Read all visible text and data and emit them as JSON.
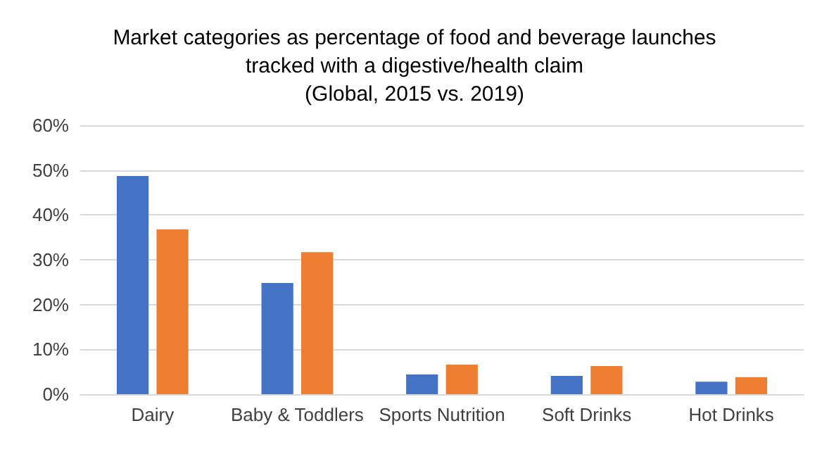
{
  "chart_data": {
    "type": "bar",
    "title": "Market categories as percentage of food and beverage launches\ntracked with a digestive/health claim\n(Global, 2015 vs. 2019)",
    "categories": [
      "Dairy",
      "Baby & Toddlers",
      "Sports Nutrition",
      "Soft Drinks",
      "Hot Drinks"
    ],
    "series": [
      {
        "color": "#4472c4",
        "values": [
          48.7,
          24.8,
          4.4,
          4.1,
          2.8
        ]
      },
      {
        "color": "#ed7d31",
        "values": [
          36.8,
          31.7,
          6.6,
          6.3,
          3.8
        ]
      }
    ],
    "ylim": [
      0,
      60
    ],
    "yticks": [
      {
        "value": 0,
        "label": "0%"
      },
      {
        "value": 10,
        "label": "10%"
      },
      {
        "value": 20,
        "label": "20%"
      },
      {
        "value": 30,
        "label": "30%"
      },
      {
        "value": 40,
        "label": "40%"
      },
      {
        "value": 50,
        "label": "50%"
      },
      {
        "value": 60,
        "label": "60%"
      }
    ],
    "grid": "y"
  }
}
